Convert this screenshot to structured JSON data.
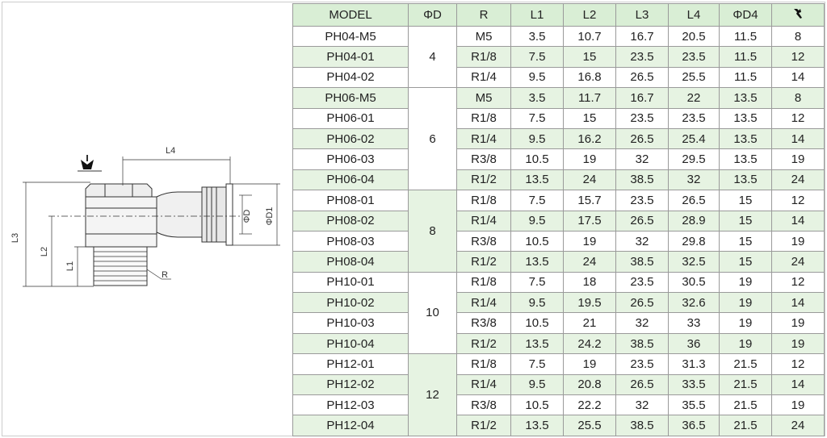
{
  "drawing": {
    "labels": {
      "l4": "L4",
      "l3": "L3",
      "l2": "L2",
      "l1": "L1",
      "r": "R",
      "d": "ΦD",
      "d1": "ΦD1"
    }
  },
  "table": {
    "headers": [
      "MODEL",
      "ΦD",
      "R",
      "L1",
      "L2",
      "L3",
      "L4",
      "ΦD4"
    ],
    "groups": [
      {
        "d": "4",
        "rows": [
          [
            "PH04-M5",
            "M5",
            "3.5",
            "10.7",
            "16.7",
            "20.5",
            "11.5",
            "8"
          ],
          [
            "PH04-01",
            "R1/8",
            "7.5",
            "15",
            "23.5",
            "23.5",
            "11.5",
            "12"
          ],
          [
            "PH04-02",
            "R1/4",
            "9.5",
            "16.8",
            "26.5",
            "25.5",
            "11.5",
            "14"
          ]
        ]
      },
      {
        "d": "6",
        "rows": [
          [
            "PH06-M5",
            "M5",
            "3.5",
            "11.7",
            "16.7",
            "22",
            "13.5",
            "8"
          ],
          [
            "PH06-01",
            "R1/8",
            "7.5",
            "15",
            "23.5",
            "23.5",
            "13.5",
            "12"
          ],
          [
            "PH06-02",
            "R1/4",
            "9.5",
            "16.2",
            "26.5",
            "25.4",
            "13.5",
            "14"
          ],
          [
            "PH06-03",
            "R3/8",
            "10.5",
            "19",
            "32",
            "29.5",
            "13.5",
            "19"
          ],
          [
            "PH06-04",
            "R1/2",
            "13.5",
            "24",
            "38.5",
            "32",
            "13.5",
            "24"
          ]
        ]
      },
      {
        "d": "8",
        "rows": [
          [
            "PH08-01",
            "R1/8",
            "7.5",
            "15.7",
            "23.5",
            "26.5",
            "15",
            "12"
          ],
          [
            "PH08-02",
            "R1/4",
            "9.5",
            "17.5",
            "26.5",
            "28.9",
            "15",
            "14"
          ],
          [
            "PH08-03",
            "R3/8",
            "10.5",
            "19",
            "32",
            "29.8",
            "15",
            "19"
          ],
          [
            "PH08-04",
            "R1/2",
            "13.5",
            "24",
            "38.5",
            "32.5",
            "15",
            "24"
          ]
        ]
      },
      {
        "d": "10",
        "rows": [
          [
            "PH10-01",
            "R1/8",
            "7.5",
            "18",
            "23.5",
            "30.5",
            "19",
            "12"
          ],
          [
            "PH10-02",
            "R1/4",
            "9.5",
            "19.5",
            "26.5",
            "32.6",
            "19",
            "14"
          ],
          [
            "PH10-03",
            "R3/8",
            "10.5",
            "21",
            "32",
            "33",
            "19",
            "19"
          ],
          [
            "PH10-04",
            "R1/2",
            "13.5",
            "24.2",
            "38.5",
            "36",
            "19",
            "19"
          ]
        ]
      },
      {
        "d": "12",
        "rows": [
          [
            "PH12-01",
            "R1/8",
            "7.5",
            "19",
            "23.5",
            "31.3",
            "21.5",
            "12"
          ],
          [
            "PH12-02",
            "R1/4",
            "9.5",
            "20.8",
            "26.5",
            "33.5",
            "21.5",
            "14"
          ],
          [
            "PH12-03",
            "R3/8",
            "10.5",
            "22.2",
            "32",
            "35.5",
            "21.5",
            "19"
          ],
          [
            "PH12-04",
            "R1/2",
            "13.5",
            "25.5",
            "38.5",
            "36.5",
            "21.5",
            "24"
          ]
        ]
      }
    ]
  }
}
